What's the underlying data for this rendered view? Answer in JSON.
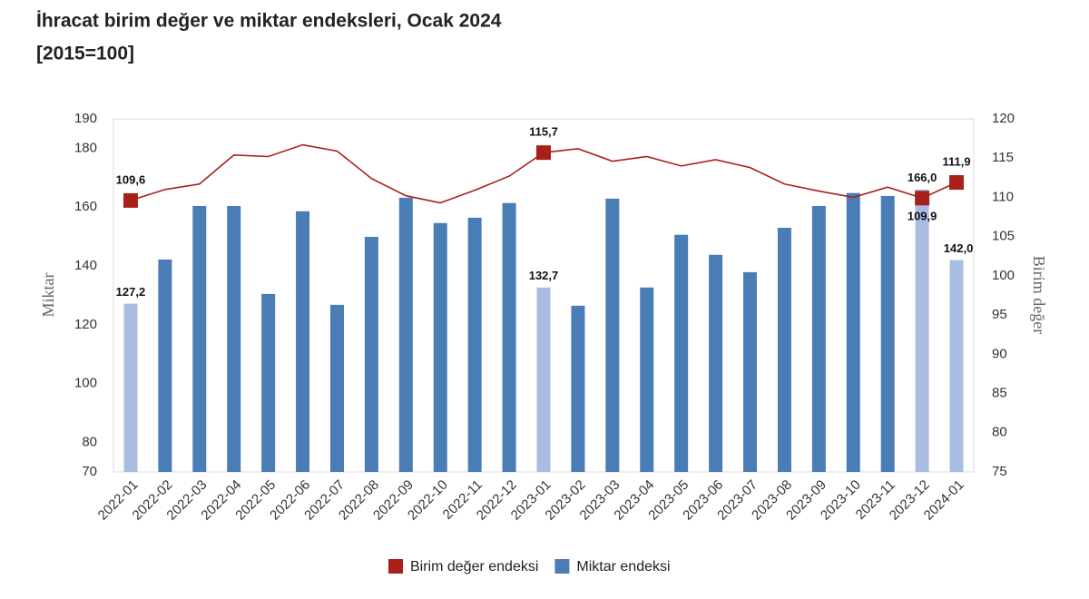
{
  "chart_data": {
    "type": "bar+line",
    "title": "İhracat birim değer ve miktar endeksleri, Ocak 2024",
    "subtitle": "[2015=100]",
    "y_label": "Miktar",
    "y2_label": "Birim değer",
    "categories": [
      "2022-01",
      "2022-02",
      "2022-03",
      "2022-04",
      "2022-05",
      "2022-06",
      "2022-07",
      "2022-08",
      "2022-09",
      "2022-10",
      "2022-11",
      "2022-12",
      "2023-01",
      "2023-02",
      "2023-03",
      "2023-04",
      "2023-05",
      "2023-06",
      "2023-07",
      "2023-08",
      "2023-09",
      "2023-10",
      "2023-11",
      "2023-12",
      "2024-01"
    ],
    "ylim": [
      70,
      190
    ],
    "yticks": [
      70,
      80,
      100,
      120,
      140,
      160,
      180,
      190
    ],
    "y2lim": [
      75,
      120
    ],
    "y2ticks": [
      75,
      80,
      85,
      90,
      95,
      100,
      105,
      110,
      115,
      120
    ],
    "grid": false,
    "legend": "bottom",
    "series": [
      {
        "name": "Birim değer endeksi",
        "type": "line",
        "axis": "y2",
        "color": "#a8201a",
        "values": [
          109.6,
          111.0,
          111.7,
          115.4,
          115.2,
          116.7,
          115.9,
          112.4,
          110.2,
          109.3,
          110.9,
          112.7,
          115.7,
          116.2,
          114.6,
          115.2,
          114.0,
          114.8,
          113.8,
          111.7,
          110.8,
          110.0,
          111.3,
          109.9,
          111.9
        ],
        "value_labels": [
          "109,6",
          null,
          null,
          null,
          null,
          null,
          null,
          null,
          null,
          null,
          null,
          null,
          "115,7",
          null,
          null,
          null,
          null,
          null,
          null,
          null,
          null,
          null,
          null,
          "109,9",
          "111,9"
        ]
      },
      {
        "name": "Miktar endeksi",
        "type": "bar",
        "axis": "y",
        "color": "#4a7db5",
        "colors": [
          "#a9bde3",
          "#4a7db5",
          "#4a7db5",
          "#4a7db5",
          "#4a7db5",
          "#4a7db5",
          "#4a7db5",
          "#4a7db5",
          "#4a7db5",
          "#4a7db5",
          "#4a7db5",
          "#4a7db5",
          "#a9bde3",
          "#4a7db5",
          "#4a7db5",
          "#4a7db5",
          "#4a7db5",
          "#4a7db5",
          "#4a7db5",
          "#4a7db5",
          "#4a7db5",
          "#4a7db5",
          "#4a7db5",
          "#a9bde3",
          "#a9bde3"
        ],
        "values": [
          127.2,
          142.2,
          160.4,
          160.4,
          130.5,
          158.6,
          126.8,
          149.9,
          163.2,
          154.6,
          156.4,
          161.4,
          132.7,
          126.5,
          162.9,
          132.7,
          150.6,
          143.8,
          137.9,
          153.0,
          160.4,
          164.8,
          163.8,
          166.0,
          142.0
        ],
        "value_labels": [
          "127,2",
          null,
          null,
          null,
          null,
          null,
          null,
          null,
          null,
          null,
          null,
          null,
          "132,7",
          null,
          null,
          null,
          null,
          null,
          null,
          null,
          null,
          null,
          null,
          "166,0",
          "142,0"
        ]
      }
    ]
  }
}
